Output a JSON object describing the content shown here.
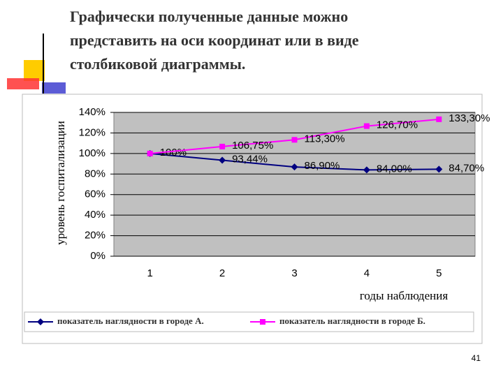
{
  "chart_data": {
    "type": "line",
    "title": [
      "Графически полученные данные можно",
      "представить на оси координат или в виде",
      "столбиковой диаграммы."
    ],
    "y_label": "уровень госпитализации",
    "x_label": "годы наблюдения",
    "categories": [
      "1",
      "2",
      "3",
      "4",
      "5"
    ],
    "series": [
      {
        "name": "показатель наглядности в городе А.",
        "color": "#000080",
        "marker": "diamond",
        "values": [
          100,
          93.44,
          86.9,
          84.0,
          84.7
        ],
        "value_labels": [
          "100%",
          "93,44%",
          "86,90%",
          "84,00%",
          "84,70%"
        ]
      },
      {
        "name": "показатель наглядности в городе Б.",
        "color": "#ff00ff",
        "marker": "square",
        "values": [
          100,
          106.75,
          113.3,
          126.7,
          133.3
        ],
        "value_labels": [
          null,
          "106,75%",
          "113,30%",
          "126,70%",
          "133,30%"
        ]
      }
    ],
    "ylim": [
      0,
      140
    ],
    "yticks": [
      {
        "value": 0,
        "label": "0%"
      },
      {
        "value": 20,
        "label": "20%"
      },
      {
        "value": 40,
        "label": "40%"
      },
      {
        "value": 60,
        "label": "60%"
      },
      {
        "value": 80,
        "label": "80%"
      },
      {
        "value": 100,
        "label": "100%"
      },
      {
        "value": 120,
        "label": "120%"
      },
      {
        "value": 140,
        "label": "140%"
      }
    ],
    "grid": true,
    "legend": "bottom"
  },
  "page_number": "41"
}
